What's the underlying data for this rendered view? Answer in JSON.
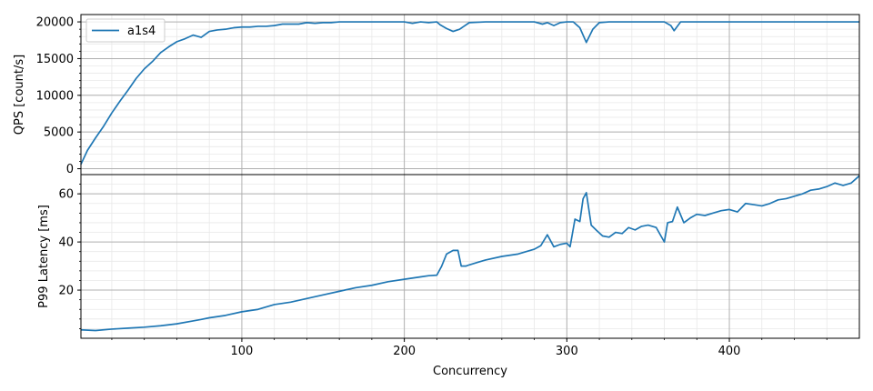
{
  "chart_data": [
    {
      "type": "line",
      "ylabel": "QPS [count/s]",
      "xlim": [
        1,
        480
      ],
      "ylim": [
        -800,
        21000
      ],
      "yticks": [
        0,
        5000,
        10000,
        15000,
        20000
      ],
      "ytick_labels": [
        "0",
        "5000",
        "10000",
        "15000",
        "20000"
      ],
      "grid": true,
      "legend_position": "top-left",
      "series": [
        {
          "name": "a1s4",
          "color": "#1f77b4",
          "x": [
            1,
            5,
            10,
            15,
            20,
            25,
            30,
            35,
            40,
            45,
            50,
            55,
            60,
            65,
            70,
            75,
            80,
            85,
            90,
            95,
            100,
            105,
            110,
            115,
            120,
            125,
            130,
            135,
            140,
            145,
            150,
            155,
            160,
            170,
            180,
            190,
            200,
            205,
            210,
            215,
            220,
            222,
            226,
            230,
            234,
            240,
            250,
            260,
            270,
            280,
            285,
            288,
            292,
            296,
            300,
            304,
            308,
            312,
            316,
            320,
            326,
            340,
            360,
            364,
            366,
            370,
            380,
            400,
            420,
            440,
            460,
            480
          ],
          "y": [
            600,
            2500,
            4200,
            5800,
            7600,
            9200,
            10700,
            12300,
            13600,
            14600,
            15800,
            16600,
            17300,
            17700,
            18200,
            17900,
            18700,
            18900,
            19000,
            19200,
            19300,
            19300,
            19400,
            19400,
            19500,
            19700,
            19700,
            19700,
            19900,
            19800,
            19900,
            19900,
            20000,
            20000,
            20000,
            20000,
            20000,
            19800,
            20000,
            19900,
            20000,
            19600,
            19100,
            18700,
            19000,
            19900,
            20000,
            20000,
            20000,
            20000,
            19700,
            19900,
            19500,
            19900,
            20000,
            20000,
            19200,
            17200,
            19000,
            19900,
            20000,
            20000,
            20000,
            19500,
            18800,
            20000,
            20000,
            20000,
            20000,
            20000,
            20000,
            20000
          ]
        }
      ]
    },
    {
      "type": "line",
      "xlabel": "Concurrency",
      "ylabel": "P99 Latency [ms]",
      "xlim": [
        1,
        480
      ],
      "ylim": [
        0,
        68
      ],
      "xticks": [
        100,
        200,
        300,
        400
      ],
      "xtick_labels": [
        "100",
        "200",
        "300",
        "400"
      ],
      "yticks": [
        20,
        40,
        60
      ],
      "ytick_labels": [
        "20",
        "40",
        "60"
      ],
      "grid": true,
      "series": [
        {
          "name": "a1s4",
          "color": "#1f77b4",
          "x": [
            1,
            10,
            20,
            30,
            40,
            50,
            60,
            70,
            75,
            80,
            90,
            100,
            110,
            120,
            130,
            140,
            150,
            160,
            170,
            180,
            190,
            200,
            210,
            215,
            220,
            223,
            226,
            230,
            233,
            235,
            238,
            240,
            245,
            250,
            260,
            270,
            280,
            284,
            288,
            292,
            296,
            300,
            302,
            305,
            308,
            310,
            312,
            315,
            318,
            322,
            326,
            330,
            334,
            338,
            342,
            346,
            350,
            355,
            360,
            362,
            365,
            368,
            372,
            376,
            380,
            385,
            390,
            395,
            400,
            405,
            410,
            415,
            420,
            425,
            430,
            435,
            440,
            445,
            450,
            455,
            460,
            465,
            470,
            475,
            480
          ],
          "y": [
            3.5,
            3.2,
            3.8,
            4.2,
            4.6,
            5.2,
            6.0,
            7.2,
            7.8,
            8.5,
            9.5,
            11.0,
            12.0,
            14.0,
            15.0,
            16.5,
            18.0,
            19.5,
            21.0,
            22.0,
            23.5,
            24.5,
            25.5,
            26.0,
            26.2,
            30.0,
            35.0,
            36.5,
            36.5,
            30.0,
            30.0,
            30.5,
            31.5,
            32.5,
            34.0,
            35.0,
            37.0,
            38.5,
            43.0,
            38.0,
            39.0,
            39.5,
            38.0,
            49.5,
            48.5,
            58.0,
            60.5,
            47.0,
            45.0,
            42.5,
            42.0,
            44.0,
            43.5,
            46.0,
            45.0,
            46.5,
            47.0,
            46.0,
            40.0,
            48.0,
            48.5,
            54.5,
            48.0,
            50.0,
            51.5,
            51.0,
            52.0,
            53.0,
            53.5,
            52.5,
            56.0,
            55.5,
            55.0,
            56.0,
            57.5,
            58.0,
            59.0,
            60.0,
            61.5,
            62.0,
            63.0,
            64.5,
            63.5,
            64.5,
            67.5
          ]
        }
      ]
    }
  ]
}
